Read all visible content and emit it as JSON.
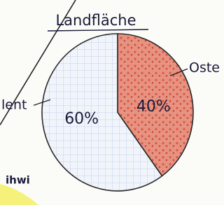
{
  "chart_data": {
    "type": "pie",
    "title": "Landfläche",
    "categories": [
      "Oste",
      "lent"
    ],
    "values": [
      40,
      60
    ],
    "value_labels": [
      "40%",
      "60%"
    ],
    "colors": [
      "#e4735f",
      "#dfe8f4"
    ],
    "annotation": "ihwi"
  }
}
